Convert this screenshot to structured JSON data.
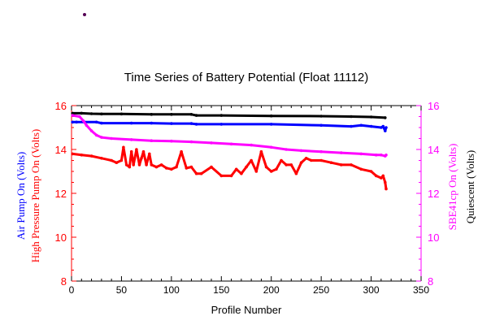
{
  "chart_data": {
    "type": "line",
    "title": "Time Series of Battery Potential (Float 11112)",
    "xlabel": "Profile Number",
    "xlim": [
      0,
      350
    ],
    "xticks": [
      0,
      50,
      100,
      150,
      200,
      250,
      300,
      350
    ],
    "ylim": [
      8,
      16
    ],
    "yticks": [
      8,
      10,
      12,
      14,
      16
    ],
    "left_labels": [
      {
        "text": "Air Pump On (Volts)",
        "color": "#0000ff"
      },
      {
        "text": "High Pressure Pump On (Volts)",
        "color": "#ff0000"
      }
    ],
    "right_labels": [
      {
        "text": "SBE41cp On (Volts)",
        "color": "#ff00ff"
      },
      {
        "text": "Quiescent (Volts)",
        "color": "#000000"
      }
    ],
    "left_axis_color": "#ff0000",
    "right_axis_color": "#ff00ff",
    "series": [
      {
        "name": "Quiescent",
        "color": "#000000",
        "x": [
          1,
          10,
          20,
          30,
          50,
          80,
          100,
          120,
          125,
          150,
          200,
          250,
          280,
          300,
          314
        ],
        "y": [
          15.65,
          15.65,
          15.63,
          15.62,
          15.62,
          15.6,
          15.6,
          15.6,
          15.55,
          15.55,
          15.53,
          15.52,
          15.5,
          15.48,
          15.45
        ]
      },
      {
        "name": "Air Pump On",
        "color": "#0000ff",
        "x": [
          1,
          5,
          25,
          30,
          60,
          80,
          100,
          120,
          125,
          150,
          200,
          250,
          280,
          290,
          300,
          310,
          312,
          314,
          315
        ],
        "y": [
          15.25,
          15.25,
          15.25,
          15.2,
          15.2,
          15.2,
          15.18,
          15.18,
          15.15,
          15.15,
          15.15,
          15.1,
          15.05,
          15.1,
          15.05,
          15.0,
          15.05,
          14.85,
          15.0
        ]
      },
      {
        "name": "SBE41cp On",
        "color": "#ff00ff",
        "x": [
          1,
          8,
          12,
          15,
          20,
          25,
          30,
          40,
          60,
          80,
          100,
          120,
          140,
          160,
          180,
          200,
          215,
          230,
          250,
          270,
          290,
          305,
          310,
          314,
          315
        ],
        "y": [
          15.55,
          15.5,
          15.3,
          15.1,
          14.85,
          14.65,
          14.55,
          14.5,
          14.45,
          14.4,
          14.38,
          14.35,
          14.3,
          14.25,
          14.2,
          14.1,
          14.0,
          13.95,
          13.9,
          13.85,
          13.8,
          13.75,
          13.75,
          13.7,
          13.75
        ]
      },
      {
        "name": "High Pressure Pump On",
        "color": "#ff0000",
        "x": [
          1,
          10,
          20,
          30,
          40,
          45,
          50,
          52,
          55,
          58,
          60,
          62,
          65,
          68,
          70,
          72,
          75,
          78,
          80,
          85,
          90,
          95,
          100,
          105,
          110,
          115,
          120,
          125,
          130,
          140,
          150,
          160,
          165,
          170,
          175,
          180,
          185,
          190,
          195,
          200,
          205,
          210,
          215,
          220,
          225,
          230,
          235,
          240,
          250,
          260,
          270,
          280,
          290,
          300,
          305,
          310,
          312,
          314,
          315
        ],
        "y": [
          13.8,
          13.75,
          13.7,
          13.6,
          13.5,
          13.4,
          13.5,
          14.1,
          13.3,
          13.2,
          13.9,
          13.3,
          14.0,
          13.3,
          13.6,
          13.9,
          13.3,
          13.8,
          13.3,
          13.2,
          13.3,
          13.15,
          13.1,
          13.2,
          13.9,
          13.15,
          13.2,
          12.9,
          12.9,
          13.2,
          12.8,
          12.8,
          13.1,
          12.9,
          13.2,
          13.5,
          13.0,
          13.9,
          13.2,
          13.0,
          13.1,
          13.5,
          13.3,
          13.3,
          12.9,
          13.4,
          13.6,
          13.5,
          13.5,
          13.4,
          13.3,
          13.3,
          13.1,
          13.0,
          12.8,
          12.7,
          12.8,
          12.5,
          12.2
        ]
      }
    ]
  }
}
